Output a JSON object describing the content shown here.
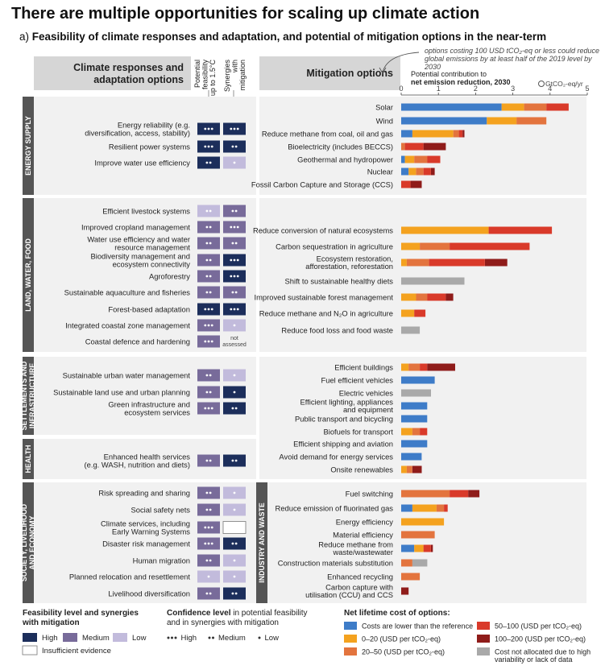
{
  "title": "There are multiple opportunities for scaling up climate action",
  "subtitle_prefix": "a)",
  "subtitle": "Feasibility of climate responses and adaptation, and potential of mitigation options in the near-term",
  "note": "options costing 100 USD tCO₂-eq or less could reduce global emissions by at least half of the 2019 level by 2030",
  "adaptation_header": [
    "Climate responses and",
    "adaptation options"
  ],
  "mitigation_header": "Mitigation options",
  "feasibility_col": [
    "Potential",
    "feasibility",
    "up to 1.5°C"
  ],
  "synergy_col": [
    "Synergies",
    "with",
    "mitigation"
  ],
  "axis_title": [
    "Potential contribution to",
    "net emission reduction, 2030"
  ],
  "axis_unit": "GtCO₂-eq/yr",
  "not_assessed": [
    "not",
    "assessed"
  ],
  "sectors_left": [
    "ENERGY SUPPLY",
    "LAND, WATER, FOOD",
    "SETTLEMENTS AND INFRASTRUCTURE",
    "HEALTH",
    "SOCIETY, LIVELIHOOD AND ECONOMY"
  ],
  "sector_right_industry": "INDUSTRY AND WASTE",
  "colors": {
    "high": "#1c2e5b",
    "medium": "#786b9a",
    "low": "#c2bbdc",
    "c_neg": "#3e7cc8",
    "c_0_20": "#f4a21f",
    "c_20_50": "#e3743e",
    "c_50_100": "#d93a2a",
    "c_100_200": "#8f1c1a",
    "c_na": "#a9a9a9",
    "panel": "#f1f1f1",
    "sector": "#555555",
    "header": "#d6d6d6"
  },
  "adaptation_options": [
    {
      "sector": 0,
      "label": [
        "Energy reliability (e.g.",
        "diversification, access, stability)"
      ],
      "feasibility": "high",
      "feas_conf": 3,
      "synergy": "high",
      "syn_conf": 3
    },
    {
      "sector": 0,
      "label": [
        "Resilient power systems"
      ],
      "feasibility": "high",
      "feas_conf": 3,
      "synergy": "high",
      "syn_conf": 2
    },
    {
      "sector": 0,
      "label": [
        "Improve water use efficiency"
      ],
      "feasibility": "high",
      "feas_conf": 2,
      "synergy": "low",
      "syn_conf": 1
    },
    {
      "sector": 1,
      "label": [
        "Efficient livestock systems"
      ],
      "feasibility": "low",
      "feas_conf": 2,
      "synergy": "medium",
      "syn_conf": 2
    },
    {
      "sector": 1,
      "label": [
        "Improved cropland management"
      ],
      "feasibility": "medium",
      "feas_conf": 2,
      "synergy": "medium",
      "syn_conf": 3
    },
    {
      "sector": 1,
      "label": [
        "Water use efficiency and water",
        "resource management"
      ],
      "feasibility": "medium",
      "feas_conf": 2,
      "synergy": "medium",
      "syn_conf": 2
    },
    {
      "sector": 1,
      "label": [
        "Biodiversity management and",
        "ecosystem connectivity"
      ],
      "feasibility": "medium",
      "feas_conf": 2,
      "synergy": "high",
      "syn_conf": 3
    },
    {
      "sector": 1,
      "label": [
        "Agroforestry"
      ],
      "feasibility": "medium",
      "feas_conf": 2,
      "synergy": "high",
      "syn_conf": 3
    },
    {
      "sector": 1,
      "label": [
        "Sustainable aquaculture and fisheries"
      ],
      "feasibility": "medium",
      "feas_conf": 2,
      "synergy": "medium",
      "syn_conf": 2
    },
    {
      "sector": 1,
      "label": [
        "Forest-based adaptation"
      ],
      "feasibility": "high",
      "feas_conf": 3,
      "synergy": "high",
      "syn_conf": 3
    },
    {
      "sector": 1,
      "label": [
        "Integrated coastal zone management"
      ],
      "feasibility": "medium",
      "feas_conf": 3,
      "synergy": "low",
      "syn_conf": 1
    },
    {
      "sector": 1,
      "label": [
        "Coastal defence and hardening"
      ],
      "feasibility": "medium",
      "feas_conf": 3,
      "synergy": "none",
      "syn_conf": 0
    },
    {
      "sector": 2,
      "label": [
        "Sustainable urban water management"
      ],
      "feasibility": "medium",
      "feas_conf": 2,
      "synergy": "low",
      "syn_conf": 1
    },
    {
      "sector": 2,
      "label": [
        "Sustainable land use and urban planning"
      ],
      "feasibility": "medium",
      "feas_conf": 2,
      "synergy": "high",
      "syn_conf": 1
    },
    {
      "sector": 2,
      "label": [
        "Green infrastructure and",
        "ecosystem services"
      ],
      "feasibility": "medium",
      "feas_conf": 3,
      "synergy": "high",
      "syn_conf": 2
    },
    {
      "sector": 3,
      "label": [
        "Enhanced health services",
        "(e.g. WASH, nutrition and diets)"
      ],
      "feasibility": "medium",
      "feas_conf": 2,
      "synergy": "high",
      "syn_conf": 2
    },
    {
      "sector": 4,
      "label": [
        "Risk spreading and sharing"
      ],
      "feasibility": "medium",
      "feas_conf": 2,
      "synergy": "low",
      "syn_conf": 1
    },
    {
      "sector": 4,
      "label": [
        "Social safety nets"
      ],
      "feasibility": "medium",
      "feas_conf": 2,
      "synergy": "low",
      "syn_conf": 1
    },
    {
      "sector": 4,
      "label": [
        "Climate services, including",
        "Early Warning Systems"
      ],
      "feasibility": "medium",
      "feas_conf": 3,
      "synergy": "insufficient",
      "syn_conf": 0
    },
    {
      "sector": 4,
      "label": [
        "Disaster risk management"
      ],
      "feasibility": "medium",
      "feas_conf": 3,
      "synergy": "high",
      "syn_conf": 2
    },
    {
      "sector": 4,
      "label": [
        "Human migration"
      ],
      "feasibility": "medium",
      "feas_conf": 2,
      "synergy": "low",
      "syn_conf": 1
    },
    {
      "sector": 4,
      "label": [
        "Planned relocation and resettlement"
      ],
      "feasibility": "low",
      "feas_conf": 1,
      "synergy": "low",
      "syn_conf": 1
    },
    {
      "sector": 4,
      "label": [
        "Livelihood diversification"
      ],
      "feasibility": "medium",
      "feas_conf": 2,
      "synergy": "high",
      "syn_conf": 2
    }
  ],
  "chart_data": {
    "type": "bar",
    "orientation": "horizontal-stacked",
    "xlim": [
      0,
      5
    ],
    "xticks": [
      0,
      1,
      2,
      3,
      4,
      5
    ],
    "xlabel": "Potential contribution to net emission reduction, 2030",
    "unit": "GtCO₂-eq/yr",
    "cost_categories": [
      {
        "key": "c_neg",
        "label": "Costs are lower than the reference"
      },
      {
        "key": "c_0_20",
        "label": "0–20 (USD per tCO₂-eq)"
      },
      {
        "key": "c_20_50",
        "label": "20–50 (USD per tCO₂-eq)"
      },
      {
        "key": "c_50_100",
        "label": "50–100 (USD per tCO₂-eq)"
      },
      {
        "key": "c_100_200",
        "label": "100–200 (USD per tCO₂-eq)"
      },
      {
        "key": "c_na",
        "label": "Cost not allocated due to high variability or lack of data"
      }
    ],
    "options": [
      {
        "group": "energy",
        "label": [
          "Solar"
        ],
        "segments": [
          [
            2.7,
            "c_neg"
          ],
          [
            0.6,
            "c_0_20"
          ],
          [
            0.6,
            "c_20_50"
          ],
          [
            0.6,
            "c_50_100"
          ]
        ]
      },
      {
        "group": "energy",
        "label": [
          "Wind"
        ],
        "segments": [
          [
            2.3,
            "c_neg"
          ],
          [
            0.8,
            "c_0_20"
          ],
          [
            0.8,
            "c_20_50"
          ]
        ]
      },
      {
        "group": "energy",
        "label": [
          "Reduce methane from coal, oil and gas"
        ],
        "segments": [
          [
            0.3,
            "c_neg"
          ],
          [
            1.1,
            "c_0_20"
          ],
          [
            0.15,
            "c_20_50"
          ],
          [
            0.1,
            "c_50_100"
          ],
          [
            0.05,
            "c_100_200"
          ]
        ]
      },
      {
        "group": "energy",
        "label": [
          "Bioelectricity (includes BECCS)"
        ],
        "segments": [
          [
            0.1,
            "c_20_50"
          ],
          [
            0.5,
            "c_50_100"
          ],
          [
            0.6,
            "c_100_200"
          ]
        ]
      },
      {
        "group": "energy",
        "label": [
          "Geothermal and hydropower"
        ],
        "segments": [
          [
            0.1,
            "c_neg"
          ],
          [
            0.25,
            "c_0_20"
          ],
          [
            0.35,
            "c_20_50"
          ],
          [
            0.35,
            "c_50_100"
          ]
        ]
      },
      {
        "group": "energy",
        "label": [
          "Nuclear"
        ],
        "segments": [
          [
            0.2,
            "c_neg"
          ],
          [
            0.2,
            "c_0_20"
          ],
          [
            0.2,
            "c_20_50"
          ],
          [
            0.2,
            "c_50_100"
          ],
          [
            0.1,
            "c_100_200"
          ]
        ]
      },
      {
        "group": "energy",
        "label": [
          "Fossil Carbon Capture and Storage (CCS)"
        ],
        "segments": [
          [
            0.25,
            "c_50_100"
          ],
          [
            0.3,
            "c_100_200"
          ]
        ]
      },
      {
        "group": "afolu",
        "label": [
          "Reduce conversion of natural ecosystems"
        ],
        "segments": [
          [
            2.35,
            "c_0_20"
          ],
          [
            1.7,
            "c_50_100"
          ]
        ]
      },
      {
        "group": "afolu",
        "label": [
          "Carbon sequestration in agriculture"
        ],
        "segments": [
          [
            0.5,
            "c_0_20"
          ],
          [
            0.8,
            "c_20_50"
          ],
          [
            2.15,
            "c_50_100"
          ]
        ]
      },
      {
        "group": "afolu",
        "label": [
          "Ecosystem restoration,",
          "afforestation, reforestation"
        ],
        "segments": [
          [
            0.15,
            "c_0_20"
          ],
          [
            0.6,
            "c_20_50"
          ],
          [
            1.5,
            "c_50_100"
          ],
          [
            0.6,
            "c_100_200"
          ]
        ]
      },
      {
        "group": "afolu",
        "label": [
          "Shift to sustainable healthy diets"
        ],
        "segments": [
          [
            1.7,
            "c_na"
          ]
        ]
      },
      {
        "group": "afolu",
        "label": [
          "Improved sustainable forest management"
        ],
        "segments": [
          [
            0.4,
            "c_0_20"
          ],
          [
            0.3,
            "c_20_50"
          ],
          [
            0.5,
            "c_50_100"
          ],
          [
            0.2,
            "c_100_200"
          ]
        ]
      },
      {
        "group": "afolu",
        "label": [
          "Reduce methane and N₂O in agriculture"
        ],
        "segments": [
          [
            0.35,
            "c_0_20"
          ],
          [
            0.3,
            "c_50_100"
          ]
        ]
      },
      {
        "group": "afolu",
        "label": [
          "Reduce food loss and food waste"
        ],
        "segments": [
          [
            0.5,
            "c_na"
          ]
        ]
      },
      {
        "group": "buildings",
        "label": [
          "Efficient buildings"
        ],
        "segments": [
          [
            0.2,
            "c_0_20"
          ],
          [
            0.3,
            "c_20_50"
          ],
          [
            0.2,
            "c_50_100"
          ],
          [
            0.75,
            "c_100_200"
          ]
        ]
      },
      {
        "group": "transport",
        "label": [
          "Fuel efficient vehicles"
        ],
        "segments": [
          [
            0.9,
            "c_neg"
          ]
        ]
      },
      {
        "group": "transport",
        "label": [
          "Electric vehicles"
        ],
        "segments": [
          [
            0.8,
            "c_na"
          ]
        ]
      },
      {
        "group": "buildings",
        "label": [
          "Efficient lighting, appliances",
          "and equipment"
        ],
        "segments": [
          [
            0.7,
            "c_neg"
          ]
        ]
      },
      {
        "group": "transport",
        "label": [
          "Public transport and bicycling"
        ],
        "segments": [
          [
            0.7,
            "c_neg"
          ]
        ]
      },
      {
        "group": "transport",
        "label": [
          "Biofuels for transport"
        ],
        "segments": [
          [
            0.3,
            "c_0_20"
          ],
          [
            0.2,
            "c_20_50"
          ],
          [
            0.2,
            "c_50_100"
          ]
        ]
      },
      {
        "group": "transport",
        "label": [
          "Efficient shipping and aviation"
        ],
        "segments": [
          [
            0.7,
            "c_neg"
          ]
        ]
      },
      {
        "group": "buildings",
        "label": [
          "Avoid demand for energy services"
        ],
        "segments": [
          [
            0.55,
            "c_neg"
          ]
        ]
      },
      {
        "group": "buildings",
        "label": [
          "Onsite renewables"
        ],
        "segments": [
          [
            0.15,
            "c_0_20"
          ],
          [
            0.15,
            "c_20_50"
          ],
          [
            0.25,
            "c_100_200"
          ]
        ]
      },
      {
        "group": "industry",
        "label": [
          "Fuel switching"
        ],
        "segments": [
          [
            1.3,
            "c_20_50"
          ],
          [
            0.5,
            "c_50_100"
          ],
          [
            0.3,
            "c_100_200"
          ]
        ]
      },
      {
        "group": "industry",
        "label": [
          "Reduce emission of fluorinated gas"
        ],
        "segments": [
          [
            0.3,
            "c_neg"
          ],
          [
            0.65,
            "c_0_20"
          ],
          [
            0.2,
            "c_20_50"
          ],
          [
            0.1,
            "c_50_100"
          ]
        ]
      },
      {
        "group": "industry",
        "label": [
          "Energy efficiency"
        ],
        "segments": [
          [
            1.15,
            "c_0_20"
          ]
        ]
      },
      {
        "group": "industry",
        "label": [
          "Material efficiency"
        ],
        "segments": [
          [
            0.9,
            "c_20_50"
          ]
        ]
      },
      {
        "group": "industry",
        "label": [
          "Reduce methane from",
          "waste/wastewater"
        ],
        "segments": [
          [
            0.35,
            "c_neg"
          ],
          [
            0.25,
            "c_0_20"
          ],
          [
            0.2,
            "c_50_100"
          ],
          [
            0.05,
            "c_100_200"
          ]
        ]
      },
      {
        "group": "industry",
        "label": [
          "Construction materials substitution"
        ],
        "segments": [
          [
            0.3,
            "c_20_50"
          ],
          [
            0.4,
            "c_na"
          ]
        ]
      },
      {
        "group": "industry",
        "label": [
          "Enhanced recycling"
        ],
        "segments": [
          [
            0.5,
            "c_20_50"
          ]
        ]
      },
      {
        "group": "industry",
        "label": [
          "Carbon capture with",
          "utilisation (CCU) and CCS"
        ],
        "segments": [
          [
            0.2,
            "c_100_200"
          ]
        ]
      }
    ]
  },
  "legend": {
    "feasibility_title": [
      "Feasibility level and synergies",
      "with mitigation"
    ],
    "levels": [
      {
        "key": "high",
        "label": "High"
      },
      {
        "key": "medium",
        "label": "Medium"
      },
      {
        "key": "low",
        "label": "Low"
      }
    ],
    "insufficient": "Insufficient evidence",
    "confidence_title_bold": "Confidence level",
    "confidence_title_rest": " in potential feasibility",
    "confidence_title_line2": "and in synergies with mitigation",
    "confidence": [
      {
        "dots": 3,
        "label": "High"
      },
      {
        "dots": 2,
        "label": "Medium"
      },
      {
        "dots": 1,
        "label": "Low"
      }
    ],
    "cost_title": "Net lifetime cost of options:"
  }
}
